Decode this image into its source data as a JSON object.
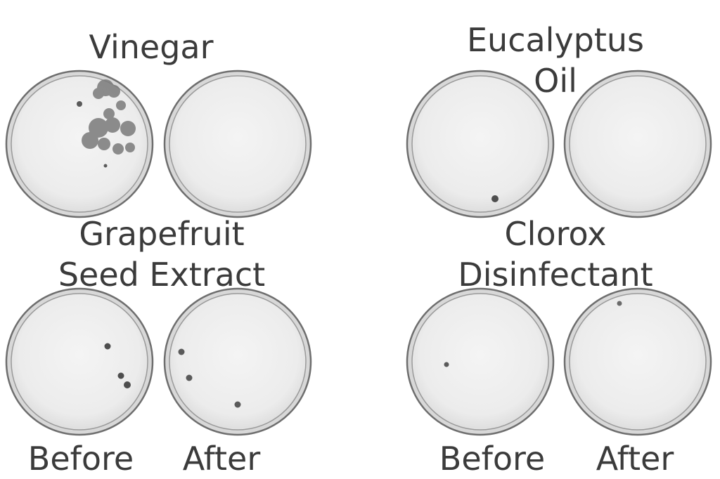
{
  "panels": [
    {
      "title_lines": [
        "Vinegar"
      ],
      "before": {
        "colony_count": 12,
        "growth": "large spreading colony cluster"
      },
      "after": {
        "colony_count": 0,
        "growth": "none"
      }
    },
    {
      "title_lines": [
        "Eucalyptus",
        "Oil"
      ],
      "before": {
        "colony_count": 1,
        "growth": "single colony"
      },
      "after": {
        "colony_count": 0,
        "growth": "none"
      }
    },
    {
      "title_lines": [
        "Grapefruit",
        "Seed Extract"
      ],
      "before": {
        "colony_count": 3,
        "growth": "small colonies"
      },
      "after": {
        "colony_count": 3,
        "growth": "small colonies"
      }
    },
    {
      "title_lines": [
        "Clorox",
        "Disinfectant"
      ],
      "before": {
        "colony_count": 1,
        "growth": "single colony"
      },
      "after": {
        "colony_count": 1,
        "growth": "single colony"
      }
    }
  ],
  "column_labels": {
    "left": {
      "before": "Before",
      "after": "After"
    },
    "right": {
      "before": "Before",
      "after": "After"
    }
  },
  "colors": {
    "dish_rim": "#6e6e6e",
    "agar": "#ececec",
    "colony": "#5a5a5a",
    "text": "#3b3b3b"
  }
}
